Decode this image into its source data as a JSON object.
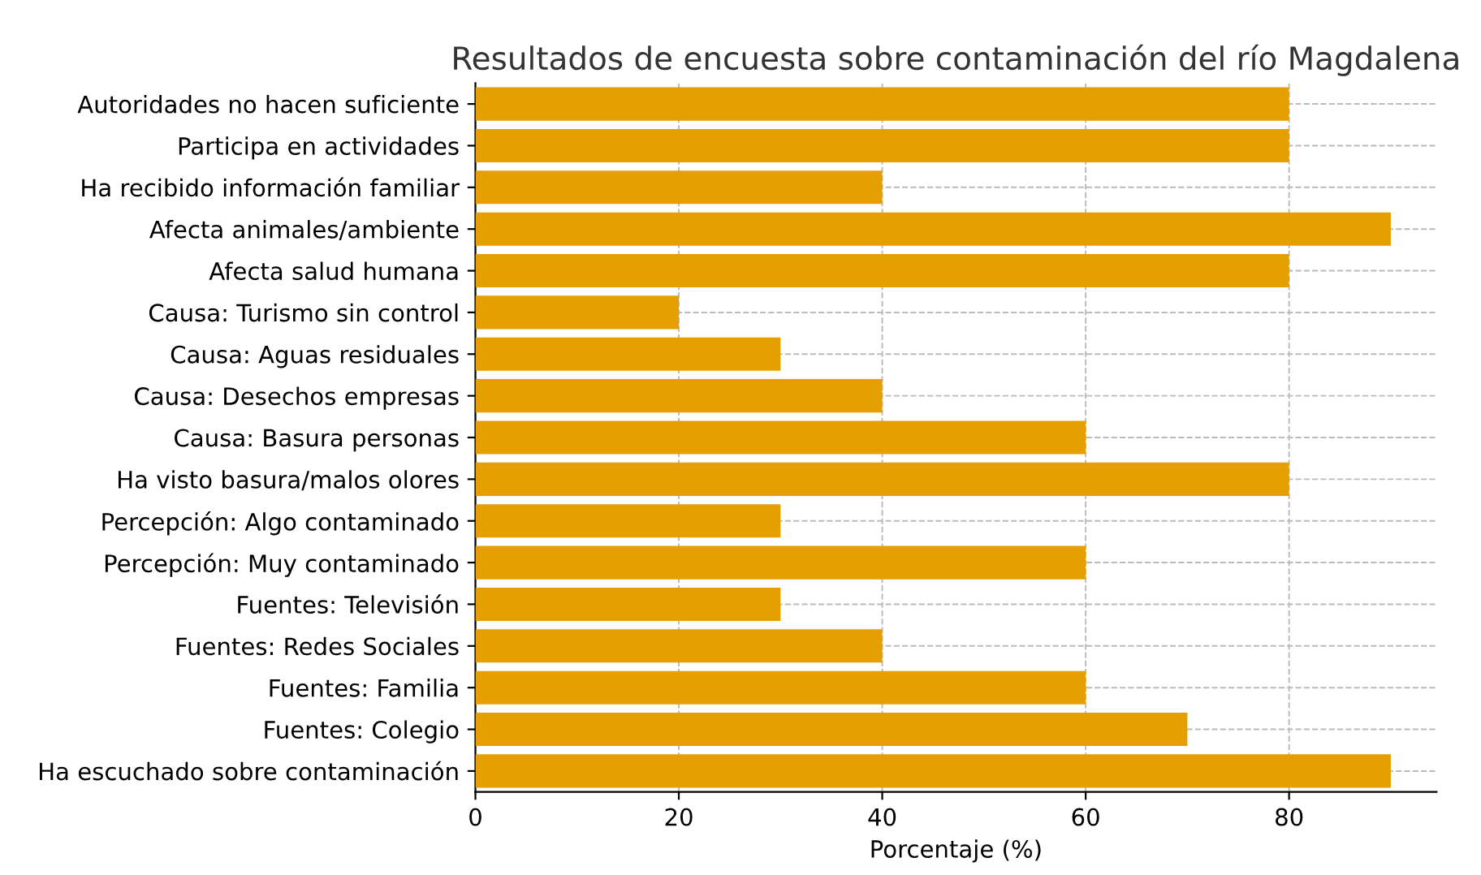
{
  "chart_data": {
    "type": "bar",
    "orientation": "horizontal",
    "title": "Resultados de encuesta sobre contaminación del río Magdalena",
    "xlabel": "Porcentaje (%)",
    "categories": [
      "Autoridades no hacen suficiente",
      "Participa en actividades",
      "Ha recibido información familiar",
      "Afecta animales/ambiente",
      "Afecta salud humana",
      "Causa: Turismo sin control",
      "Causa: Aguas residuales",
      "Causa: Desechos empresas",
      "Causa: Basura personas",
      "Ha visto basura/malos olores",
      "Percepción: Algo contaminado",
      "Percepción: Muy contaminado",
      "Fuentes: Televisión",
      "Fuentes: Redes Sociales",
      "Fuentes: Familia",
      "Fuentes: Colegio",
      "Ha escuchado sobre contaminación"
    ],
    "values": [
      80,
      80,
      40,
      90,
      80,
      20,
      30,
      40,
      60,
      80,
      30,
      60,
      30,
      40,
      60,
      70,
      90
    ],
    "color": "#e69f00",
    "xlim": [
      0,
      94.5
    ],
    "xticks": [
      0,
      20,
      40,
      60,
      80
    ],
    "grid": true
  }
}
